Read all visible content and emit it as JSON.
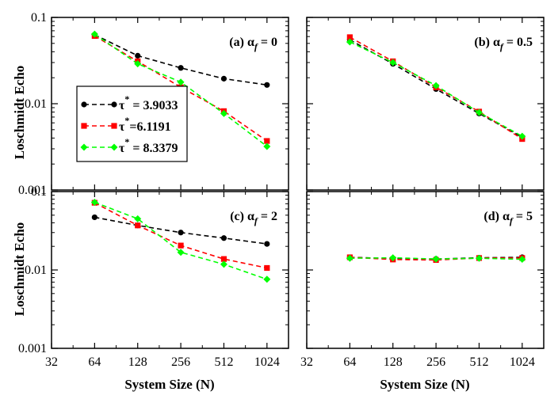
{
  "figure": {
    "ylabel": "Loschmidt Echo",
    "xlabel": "System Size (N)"
  },
  "legend": [
    {
      "prefix": "τ",
      "sup": "*",
      "value": " = 3.9033",
      "color": "#000000",
      "marker": "circle"
    },
    {
      "prefix": "τ",
      "sup": "*",
      "value": "=6.1191",
      "color": "#ff0000",
      "marker": "square"
    },
    {
      "prefix": "τ",
      "sup": "*",
      "value": " = 8.3379",
      "color": "#00ff00",
      "marker": "diamond"
    }
  ],
  "chart_data": [
    {
      "type": "line",
      "panel": "(a)",
      "title": "(a) α_f = 0",
      "title_parts": {
        "prefix": "(a) α",
        "sub": "f",
        "suffix": " = 0"
      },
      "xscale": "log2",
      "yscale": "log10",
      "xlim": [
        32,
        1448
      ],
      "ylim": [
        0.001,
        0.1
      ],
      "xticks": [
        "32",
        "64",
        "128",
        "256",
        "512",
        "1024"
      ],
      "yticks": [
        "0.001",
        "0.01",
        "0.1"
      ],
      "x": [
        64,
        128,
        256,
        512,
        1024
      ],
      "series": [
        {
          "name": "τ* = 3.9033",
          "color": "#000000",
          "marker": "circle",
          "values": [
            0.063,
            0.036,
            0.026,
            0.0195,
            0.0165
          ]
        },
        {
          "name": "τ* = 6.1191",
          "color": "#ff0000",
          "marker": "square",
          "values": [
            0.061,
            0.031,
            0.0155,
            0.0082,
            0.0037
          ]
        },
        {
          "name": "τ* = 8.3379",
          "color": "#00ff00",
          "marker": "diamond",
          "values": [
            0.064,
            0.029,
            0.0178,
            0.0077,
            0.0032
          ]
        }
      ]
    },
    {
      "type": "line",
      "panel": "(b)",
      "title": "(b) α_f = 0.5",
      "title_parts": {
        "prefix": "(b) α",
        "sub": "f",
        "suffix": " = 0.5"
      },
      "xscale": "log2",
      "yscale": "log10",
      "xlim": [
        32,
        1448
      ],
      "ylim": [
        0.001,
        0.1
      ],
      "xticks": [
        "32",
        "64",
        "128",
        "256",
        "512",
        "1024"
      ],
      "yticks": [
        "0.001",
        "0.01",
        "0.1"
      ],
      "x": [
        64,
        128,
        256,
        512,
        1024
      ],
      "series": [
        {
          "name": "τ* = 3.9033",
          "color": "#000000",
          "marker": "circle",
          "values": [
            0.055,
            0.029,
            0.0148,
            0.0077,
            0.0041
          ]
        },
        {
          "name": "τ* = 6.1191",
          "color": "#ff0000",
          "marker": "square",
          "values": [
            0.059,
            0.031,
            0.0155,
            0.0081,
            0.0039
          ]
        },
        {
          "name": "τ* = 8.3379",
          "color": "#00ff00",
          "marker": "diamond",
          "values": [
            0.052,
            0.03,
            0.0162,
            0.0079,
            0.0042
          ]
        }
      ]
    },
    {
      "type": "line",
      "panel": "(c)",
      "title": "(c) α_f = 2",
      "title_parts": {
        "prefix": "(c) α",
        "sub": "f",
        "suffix": " = 2"
      },
      "xscale": "log2",
      "yscale": "log10",
      "xlim": [
        32,
        1448
      ],
      "ylim": [
        0.001,
        0.1
      ],
      "xticks": [
        "32",
        "64",
        "128",
        "256",
        "512",
        "1024"
      ],
      "yticks": [
        "0.001",
        "0.01",
        "0.1"
      ],
      "x": [
        64,
        128,
        256,
        512,
        1024
      ],
      "series": [
        {
          "name": "τ* = 3.9033",
          "color": "#000000",
          "marker": "circle",
          "values": [
            0.047,
            0.037,
            0.03,
            0.0255,
            0.0215
          ]
        },
        {
          "name": "τ* = 6.1191",
          "color": "#ff0000",
          "marker": "square",
          "values": [
            0.072,
            0.037,
            0.0205,
            0.0138,
            0.0106
          ]
        },
        {
          "name": "τ* = 8.3379",
          "color": "#00ff00",
          "marker": "diamond",
          "values": [
            0.073,
            0.045,
            0.0168,
            0.0118,
            0.0076
          ]
        }
      ]
    },
    {
      "type": "line",
      "panel": "(d)",
      "title": "(d) α_f = 5",
      "title_parts": {
        "prefix": "(d) α",
        "sub": "f",
        "suffix": " = 5"
      },
      "xscale": "log2",
      "yscale": "log10",
      "xlim": [
        32,
        1448
      ],
      "ylim": [
        0.001,
        0.1
      ],
      "xticks": [
        "32",
        "64",
        "128",
        "256",
        "512",
        "1024"
      ],
      "yticks": [
        "0.001",
        "0.01",
        "0.1"
      ],
      "x": [
        64,
        128,
        256,
        512,
        1024
      ],
      "series": [
        {
          "name": "τ* = 3.9033",
          "color": "#000000",
          "marker": "circle",
          "values": [
            0.0145,
            0.014,
            0.0138,
            0.0143,
            0.0145
          ]
        },
        {
          "name": "τ* = 6.1191",
          "color": "#ff0000",
          "marker": "square",
          "values": [
            0.0145,
            0.0136,
            0.0134,
            0.0142,
            0.0142
          ]
        },
        {
          "name": "τ* = 8.3379",
          "color": "#00ff00",
          "marker": "diamond",
          "values": [
            0.0141,
            0.0143,
            0.0138,
            0.0141,
            0.0137
          ]
        }
      ]
    }
  ]
}
